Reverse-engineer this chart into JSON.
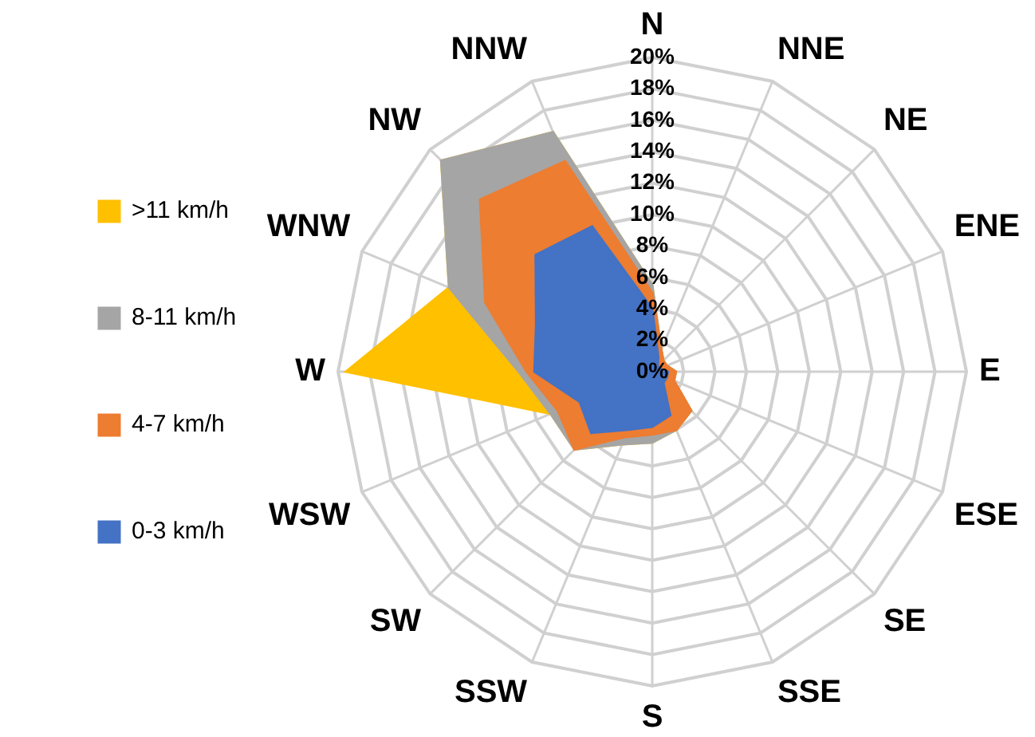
{
  "chart_data": {
    "type": "radar",
    "categories": [
      "N",
      "NNE",
      "NE",
      "ENE",
      "E",
      "ESE",
      "SE",
      "SSE",
      "S",
      "SSW",
      "SW",
      "WSW",
      "W",
      "WNW",
      "NW",
      "NNW"
    ],
    "series": [
      {
        "name": ">11 km/h",
        "color": "#ffc000",
        "values": [
          5.5,
          1.5,
          1,
          1,
          1.5,
          1.5,
          3.5,
          4,
          4.5,
          5,
          7,
          7,
          19.5,
          14,
          19,
          16.5
        ]
      },
      {
        "name": "8-11 km/h",
        "color": "#a5a5a5",
        "values": [
          5.5,
          1.5,
          1,
          1,
          1.5,
          1.5,
          3.5,
          4,
          4.5,
          5,
          7,
          7,
          8.5,
          14,
          19,
          16.5
        ]
      },
      {
        "name": "4-7 km/h",
        "color": "#ed7d31",
        "values": [
          5,
          1.5,
          1,
          1,
          1.5,
          1.5,
          3.5,
          4,
          4,
          4.5,
          7,
          6.5,
          8,
          11.5,
          15.5,
          14.5
        ]
      },
      {
        "name": "0-3 km/h",
        "color": "#4472c4",
        "values": [
          4,
          1,
          0.5,
          0.5,
          1,
          1,
          1,
          3,
          3.5,
          4,
          5.5,
          5,
          7.5,
          8,
          10.5,
          10
        ]
      }
    ],
    "ylim": [
      0,
      20
    ],
    "yticks": [
      {
        "value": 0,
        "label": "0%"
      },
      {
        "value": 2,
        "label": "2%"
      },
      {
        "value": 4,
        "label": "4%"
      },
      {
        "value": 6,
        "label": "6%"
      },
      {
        "value": 8,
        "label": "8%"
      },
      {
        "value": 10,
        "label": "10%"
      },
      {
        "value": 12,
        "label": "12%"
      },
      {
        "value": 14,
        "label": "14%"
      },
      {
        "value": 16,
        "label": "16%"
      },
      {
        "value": 18,
        "label": "18%"
      },
      {
        "value": 20,
        "label": "20%"
      }
    ],
    "grid": true,
    "legend": "left"
  }
}
